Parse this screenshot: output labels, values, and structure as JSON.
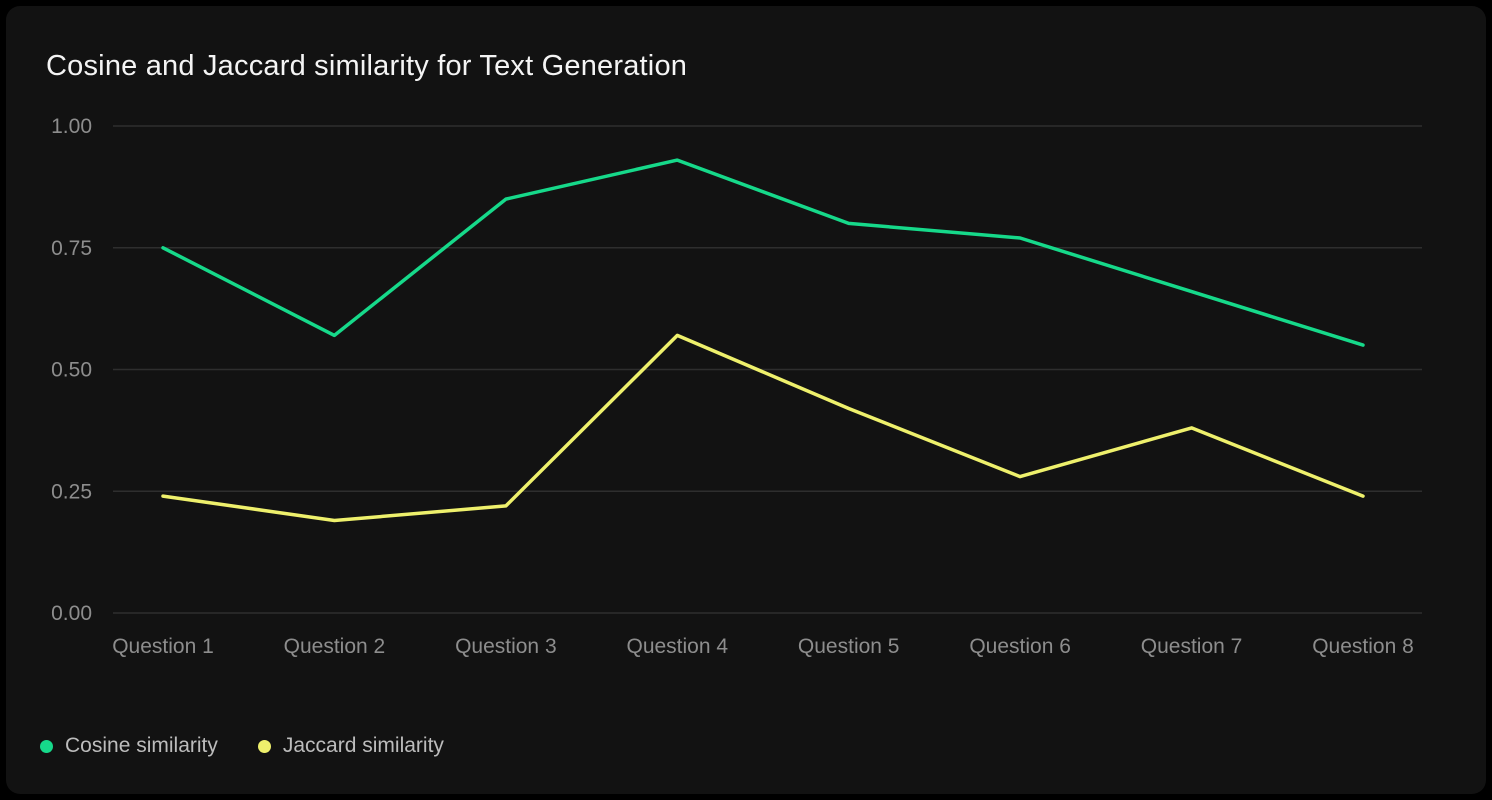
{
  "card": {
    "title": "Cosine and Jaccard similarity for Text Generation"
  },
  "chart_data": {
    "type": "line",
    "title": "Cosine and Jaccard similarity for Text Generation",
    "categories": [
      "Question 1",
      "Question 2",
      "Question 3",
      "Question 4",
      "Question 5",
      "Question 6",
      "Question 7",
      "Question 8"
    ],
    "series": [
      {
        "name": "Cosine similarity",
        "color": "#16d98a",
        "values": [
          0.75,
          0.57,
          0.85,
          0.93,
          0.8,
          0.77,
          0.66,
          0.55
        ]
      },
      {
        "name": "Jaccard similarity",
        "color": "#eef06c",
        "values": [
          0.24,
          0.19,
          0.22,
          0.57,
          0.42,
          0.28,
          0.38,
          0.24
        ]
      }
    ],
    "xlabel": "",
    "ylabel": "",
    "ylim": [
      0,
      1
    ],
    "y_ticks": [
      "1.00",
      "0.75",
      "0.50",
      "0.25",
      "0.00"
    ],
    "y_tick_values": [
      1.0,
      0.75,
      0.5,
      0.25,
      0.0
    ],
    "grid": "horizontal",
    "legend_position": "bottom-left",
    "colors": {
      "background": "#121212",
      "page_background": "#000000",
      "title_text": "#f4f4f4",
      "axis_text": "#8d8d8d",
      "gridline": "#2e2e2e",
      "legend_text": "#bcbcbc"
    }
  }
}
